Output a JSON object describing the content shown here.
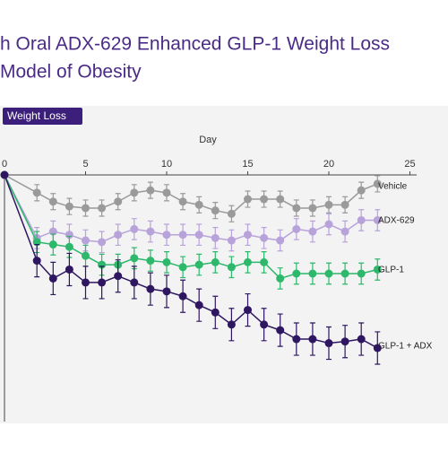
{
  "chart_data": {
    "type": "line",
    "title_lines": [
      "h Oral ADX-629 Enhanced GLP-1 Weight Loss",
      "Model of Obesity"
    ],
    "badge": "Weight Loss",
    "xlabel": "Day",
    "x": [
      0,
      2,
      3,
      4,
      5,
      6,
      7,
      8,
      9,
      10,
      11,
      12,
      13,
      14,
      15,
      16,
      17,
      18,
      19,
      20,
      21,
      22,
      23
    ],
    "xlim": [
      0,
      25
    ],
    "xticks": [
      0,
      5,
      10,
      15,
      20,
      25
    ],
    "ylim": [
      -30.5,
      0
    ],
    "series": [
      {
        "name": "Vehicle",
        "color": "#9a9a9a",
        "error": 1.0,
        "values": [
          0,
          -2.2,
          -3.3,
          -3.9,
          -4.1,
          -4.1,
          -3.3,
          -2.2,
          -1.9,
          -2.2,
          -3.3,
          -3.7,
          -4.4,
          -4.8,
          -3.0,
          -3.0,
          -3.0,
          -4.1,
          -4.1,
          -3.7,
          -3.7,
          -1.9,
          -1.1
        ]
      },
      {
        "name": "ADX-629",
        "color": "#b8a2da",
        "error": 1.3,
        "values": [
          0,
          -7.8,
          -7.0,
          -7.4,
          -8.1,
          -8.3,
          -7.4,
          -6.7,
          -7.0,
          -7.4,
          -7.4,
          -7.4,
          -7.8,
          -8.1,
          -7.4,
          -7.8,
          -8.1,
          -6.7,
          -7.0,
          -6.1,
          -7.0,
          -5.6,
          -5.6
        ]
      },
      {
        "name": "GLP-1",
        "color": "#2db86b",
        "error": 1.3,
        "values": [
          0,
          -8.3,
          -8.6,
          -8.9,
          -10.0,
          -11.1,
          -11.1,
          -10.3,
          -10.6,
          -10.8,
          -11.4,
          -11.1,
          -10.8,
          -11.4,
          -10.8,
          -10.8,
          -12.8,
          -12.2,
          -12.2,
          -12.2,
          -12.2,
          -12.2,
          -11.7
        ]
      },
      {
        "name": "GLP-1 + ADX",
        "color": "#2e1760",
        "error": 2.0,
        "values": [
          0,
          -10.6,
          -12.8,
          -11.7,
          -13.3,
          -13.3,
          -12.5,
          -13.3,
          -14.1,
          -14.4,
          -15.0,
          -16.1,
          -17.0,
          -18.5,
          -16.7,
          -18.5,
          -19.2,
          -20.3,
          -20.3,
          -20.8,
          -20.6,
          -20.3,
          -21.4
        ]
      }
    ]
  }
}
